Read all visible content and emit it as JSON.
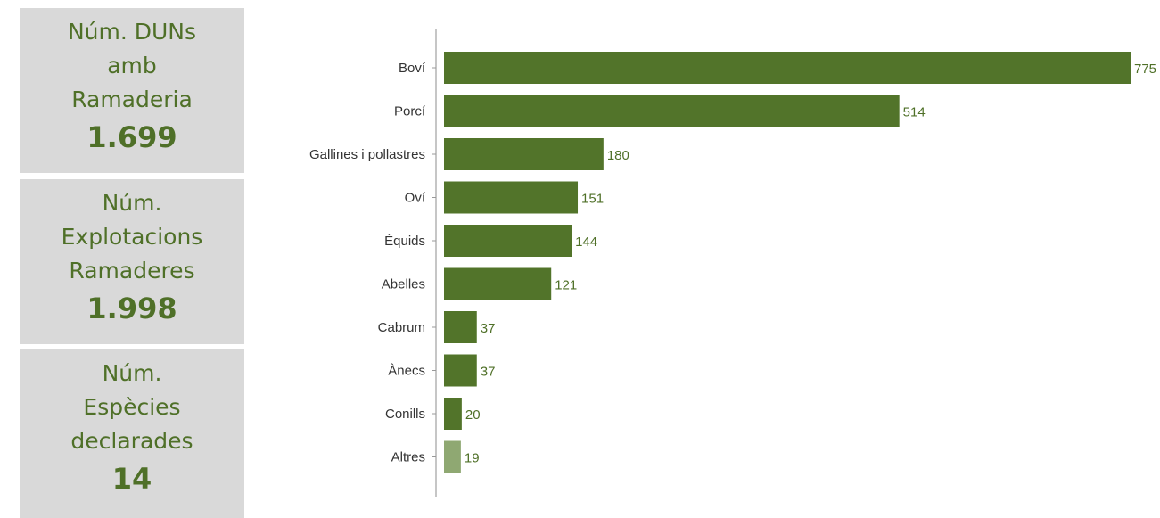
{
  "kpis": [
    {
      "label": "Núm. DUNs\namb\nRamaderia",
      "value": "1.699"
    },
    {
      "label": "Núm.\nExplotacions\nRamaderes",
      "value": "1.998"
    },
    {
      "label": "Núm.\nEspècies\ndeclarades",
      "value": "14"
    }
  ],
  "colors": {
    "bar": "#52742a",
    "bar_light": "#8fa872",
    "kpi_background": "#d9d9d9",
    "kpi_text": "#4f7028"
  },
  "chart_data": {
    "type": "bar",
    "orientation": "horizontal",
    "title": "",
    "xlabel": "",
    "ylabel": "",
    "categories": [
      "Boví",
      "Porcí",
      "Gallines i pollastres",
      "Oví",
      "Èquids",
      "Abelles",
      "Cabrum",
      "Ànecs",
      "Conills",
      "Altres"
    ],
    "values": [
      775,
      514,
      180,
      151,
      144,
      121,
      37,
      37,
      20,
      19
    ],
    "data_labels": [
      "775",
      "514",
      "180",
      "151",
      "144",
      "121",
      "37",
      "37",
      "20",
      "19"
    ],
    "xlim": [
      0,
      775
    ],
    "grid": false,
    "legend": "none"
  }
}
